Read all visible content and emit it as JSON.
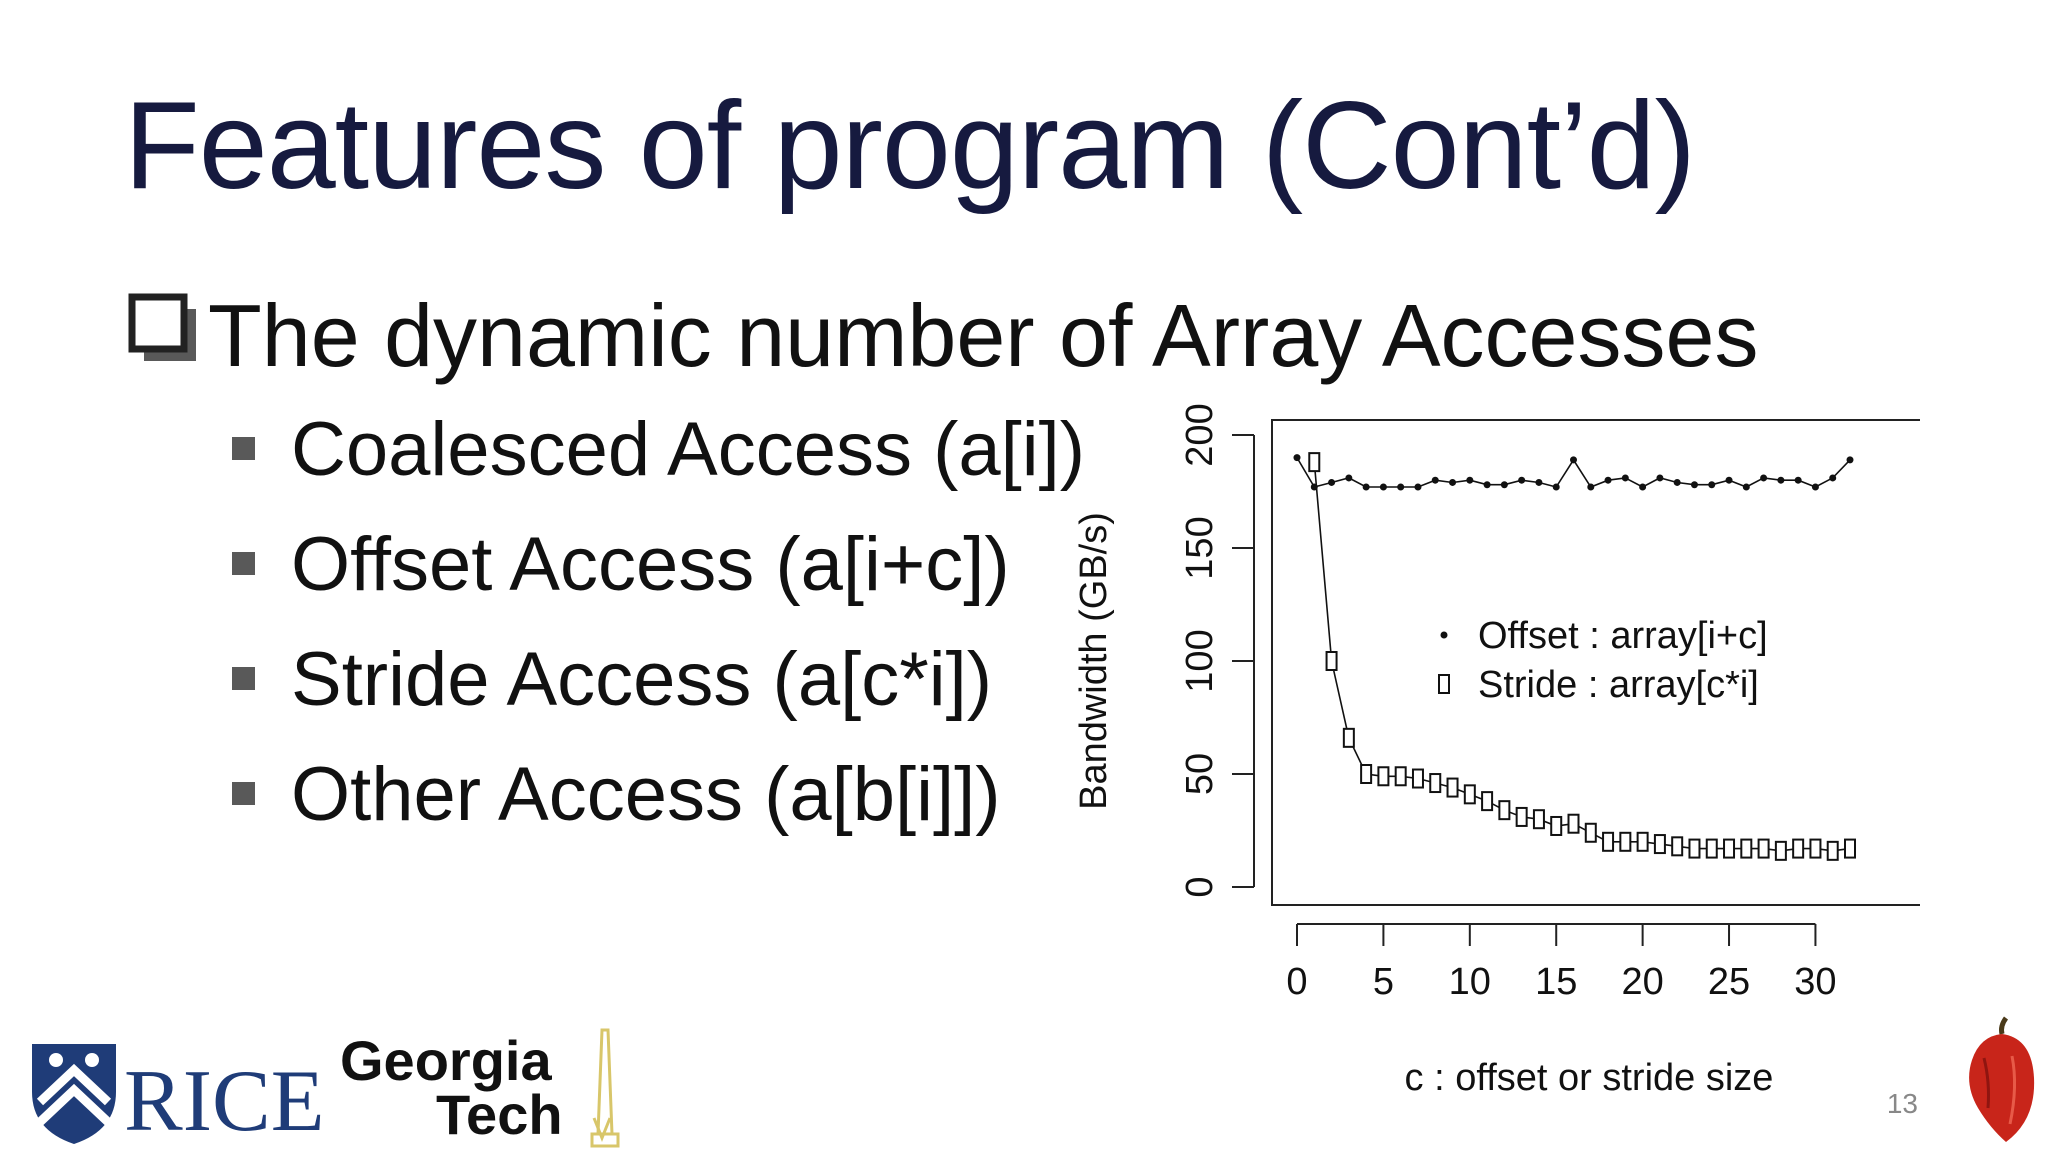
{
  "slide": {
    "title": "Features of program (Cont’d)",
    "main_bullet": "The dynamic number of Array Accesses",
    "sub_bullets": [
      "Coalesced Access (a[i])",
      "Offset Access (a[i+c])",
      "Stride Access (a[c*i])",
      "Other Access (a[b[i]])"
    ],
    "page_number": "13"
  },
  "logos": {
    "rice": {
      "text": "RICE",
      "color": "#1f3c78"
    },
    "georgia_tech": {
      "line1": "Georgia",
      "line2": "Tech",
      "accent": "#d8c66a"
    },
    "pepper": {
      "color": "#c8251a"
    }
  },
  "chart_data": {
    "type": "scatter",
    "title": "",
    "xlabel": "c : offset or stride size",
    "ylabel": "Bandwidth (GB/s)",
    "xlim": [
      0,
      32
    ],
    "ylim": [
      0,
      200
    ],
    "xticks": [
      0,
      5,
      10,
      15,
      20,
      25,
      30
    ],
    "yticks": [
      0,
      50,
      100,
      150,
      200
    ],
    "grid": false,
    "legend_position": "center-right",
    "series": [
      {
        "name": "Offset : array[i+c]",
        "marker": "dot",
        "x": [
          0,
          1,
          2,
          3,
          4,
          5,
          6,
          7,
          8,
          9,
          10,
          11,
          12,
          13,
          14,
          15,
          16,
          17,
          18,
          19,
          20,
          21,
          22,
          23,
          24,
          25,
          26,
          27,
          28,
          29,
          30,
          31,
          32
        ],
        "values": [
          190,
          177,
          179,
          181,
          177,
          177,
          177,
          177,
          180,
          179,
          180,
          178,
          178,
          180,
          179,
          177,
          189,
          177,
          180,
          181,
          177,
          181,
          179,
          178,
          178,
          180,
          177,
          181,
          180,
          180,
          177,
          181,
          189
        ]
      },
      {
        "name": "Stride : array[c*i]",
        "marker": "square",
        "x": [
          1,
          2,
          3,
          4,
          5,
          6,
          7,
          8,
          9,
          10,
          11,
          12,
          13,
          14,
          15,
          16,
          17,
          18,
          19,
          20,
          21,
          22,
          23,
          24,
          25,
          26,
          27,
          28,
          29,
          30,
          31,
          32
        ],
        "values": [
          188,
          100,
          66,
          50,
          49,
          49,
          48,
          46,
          44,
          41,
          38,
          34,
          31,
          30,
          27,
          28,
          24,
          20,
          20,
          20,
          19,
          18,
          17,
          17,
          17,
          17,
          17,
          16,
          17,
          17,
          16,
          17
        ]
      }
    ]
  }
}
